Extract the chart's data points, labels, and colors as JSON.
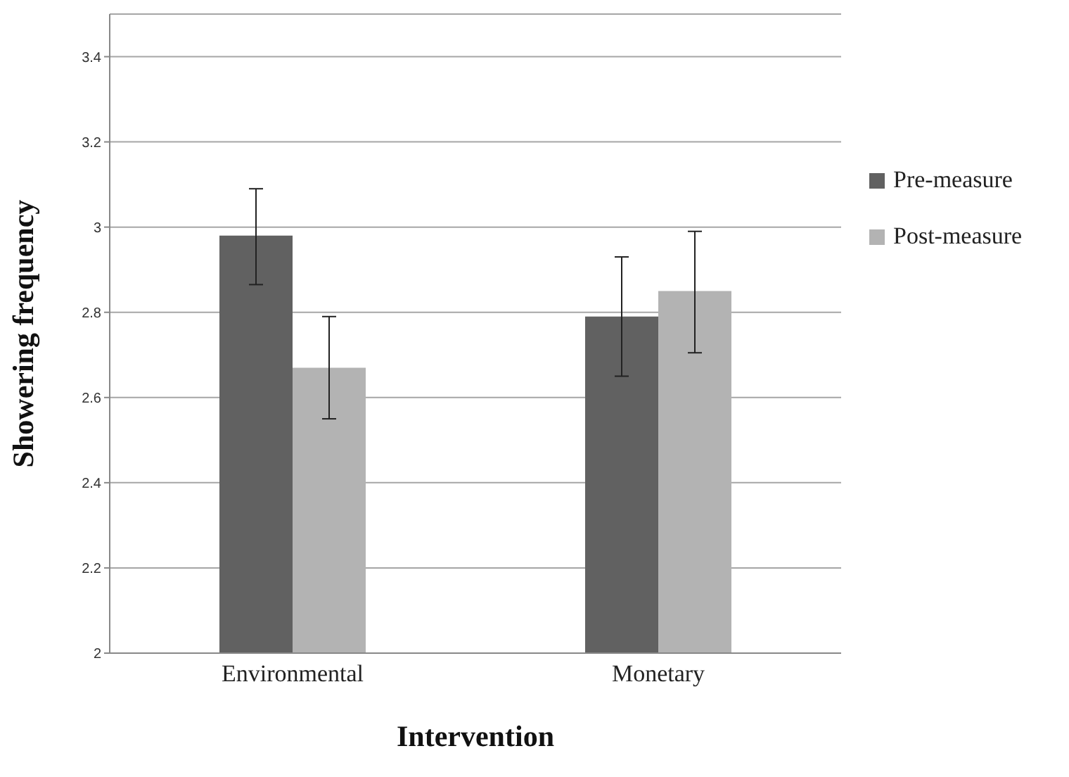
{
  "chart_data": {
    "type": "bar",
    "xlabel": "Intervention",
    "ylabel": "Showering frequency",
    "categories": [
      "Environmental",
      "Monetary"
    ],
    "series": [
      {
        "name": "Pre-measure",
        "color": "#616161",
        "values": [
          2.98,
          2.79
        ],
        "errors": [
          [
            2.865,
            3.09
          ],
          [
            2.65,
            2.93
          ]
        ]
      },
      {
        "name": "Post-measure",
        "color": "#b3b3b3",
        "values": [
          2.67,
          2.85
        ],
        "errors": [
          [
            2.55,
            2.79
          ],
          [
            2.705,
            2.99
          ]
        ]
      }
    ],
    "ylim": [
      2,
      3.5
    ],
    "yticks": [
      2,
      2.2,
      2.4,
      2.6,
      2.8,
      3,
      3.2,
      3.4
    ],
    "grid": "y",
    "legend": "right"
  }
}
